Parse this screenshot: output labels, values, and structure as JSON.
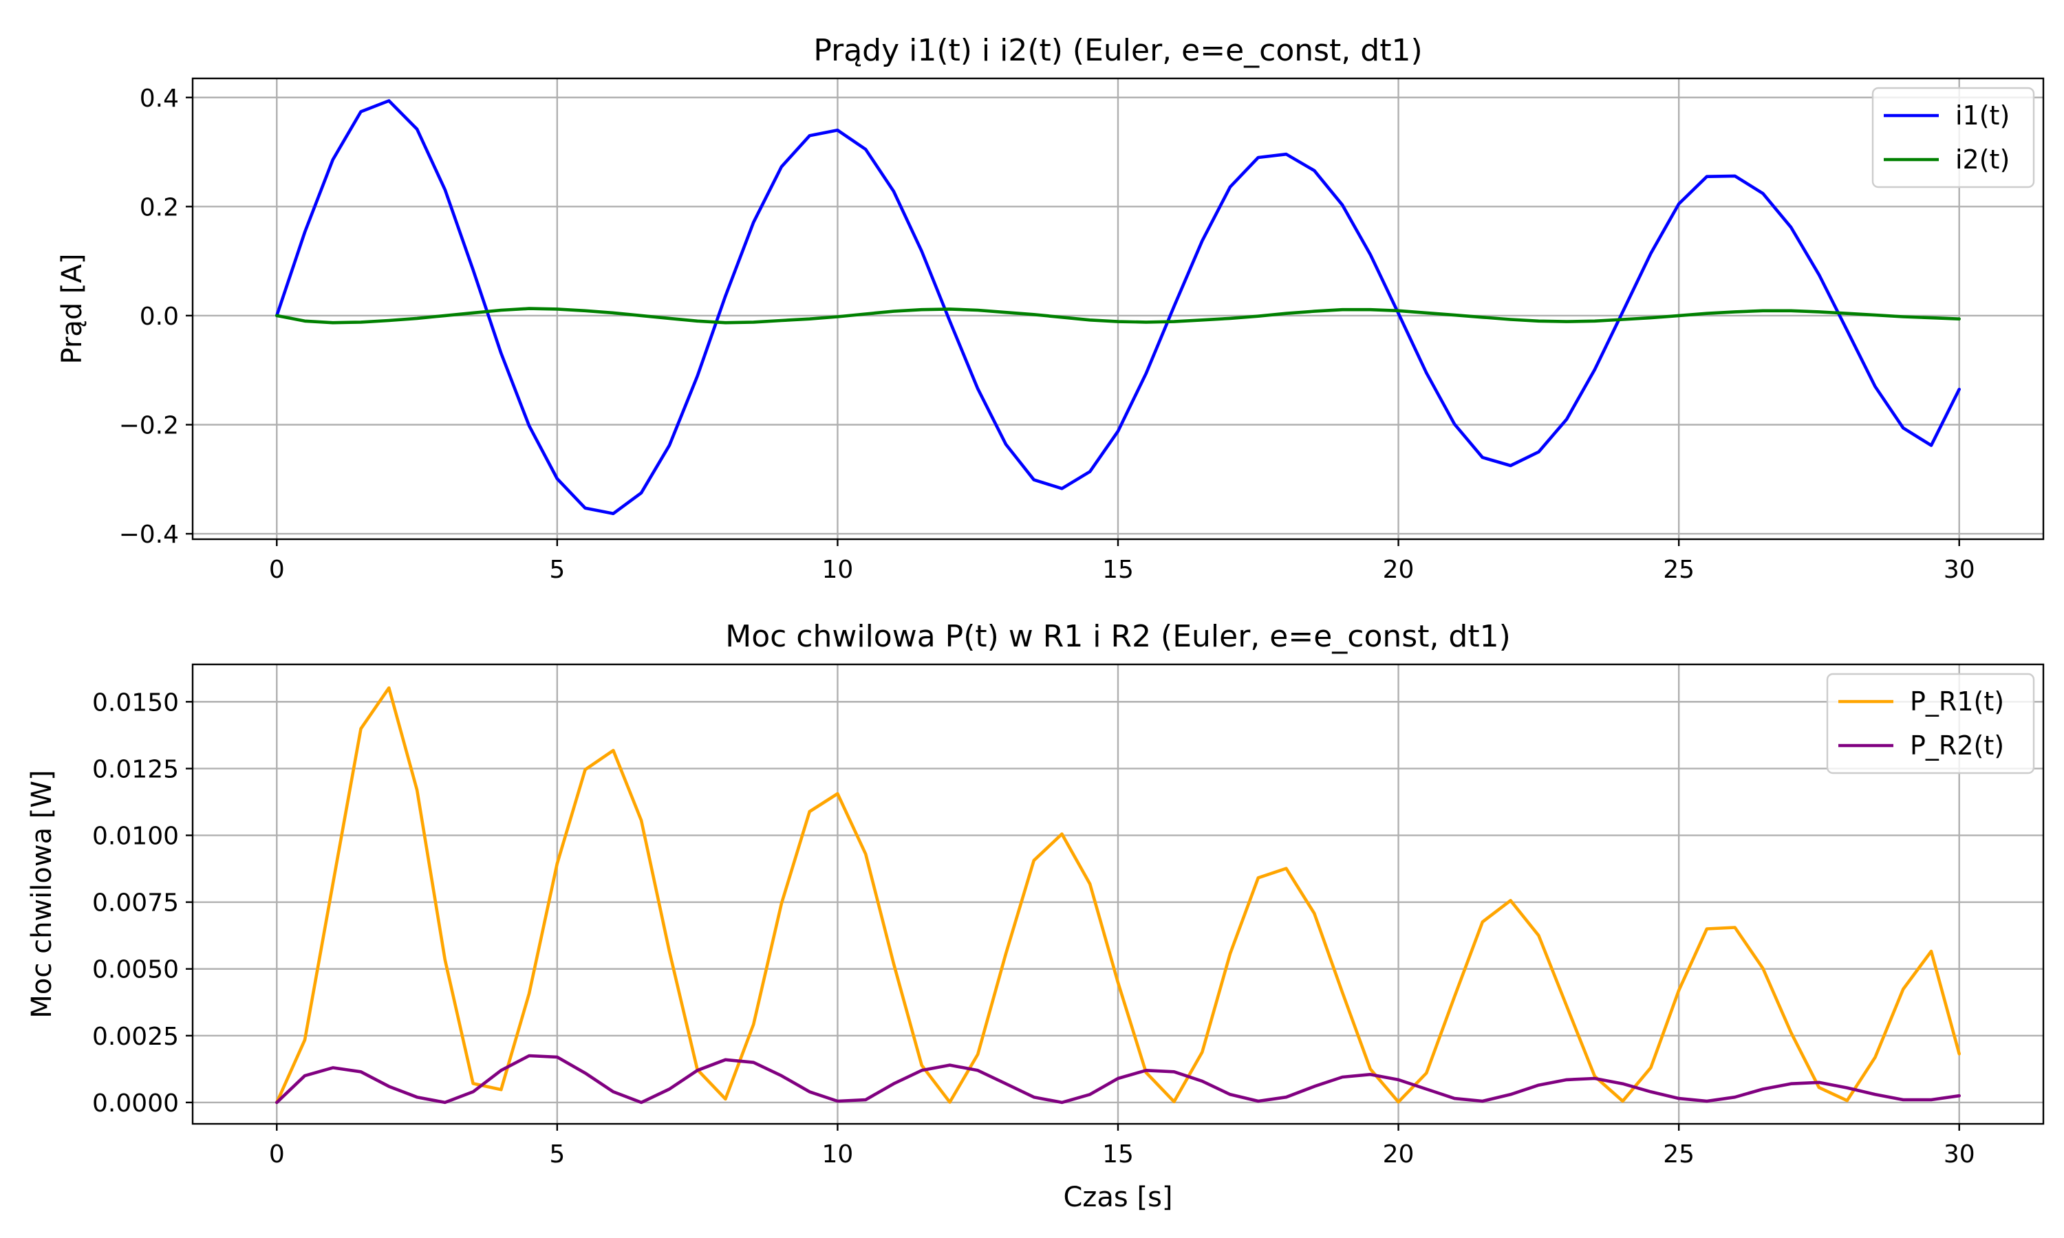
{
  "chart_data": [
    {
      "type": "line",
      "title": "Prądy i1(t) i i2(t) (Euler, e=e_const, dt1)",
      "xlabel": "",
      "ylabel": "Prąd [A]",
      "xlim": [
        -1.5,
        31.5
      ],
      "ylim": [
        -0.41,
        0.435
      ],
      "xticks": [
        0,
        5,
        10,
        15,
        20,
        25,
        30
      ],
      "xtick_labels": [
        "0",
        "5",
        "10",
        "15",
        "20",
        "25",
        "30"
      ],
      "yticks": [
        -0.4,
        -0.2,
        0.0,
        0.2,
        0.4
      ],
      "ytick_labels": [
        "−0.4",
        "−0.2",
        "0.0",
        "0.2",
        "0.4"
      ],
      "grid": true,
      "legend": "top-right",
      "x": [
        0,
        0.5,
        1,
        1.5,
        2,
        2.5,
        3,
        3.5,
        4,
        4.5,
        5,
        5.5,
        6,
        6.5,
        7,
        7.5,
        8,
        8.5,
        9,
        9.5,
        10,
        10.5,
        11,
        11.5,
        12,
        12.5,
        13,
        13.5,
        14,
        14.5,
        15,
        15.5,
        16,
        16.5,
        17,
        17.5,
        18,
        18.5,
        19,
        19.5,
        20,
        20.5,
        21,
        21.5,
        22,
        22.5,
        23,
        23.5,
        24,
        24.5,
        25,
        25.5,
        26,
        26.5,
        27,
        27.5,
        28,
        28.5,
        29,
        29.5,
        30
      ],
      "series": [
        {
          "name": "i1(t)",
          "color": "#0000ff",
          "values": [
            0,
            0.153,
            0.286,
            0.374,
            0.394,
            0.342,
            0.231,
            0.084,
            -0.069,
            -0.202,
            -0.299,
            -0.353,
            -0.363,
            -0.325,
            -0.238,
            -0.111,
            0.036,
            0.171,
            0.273,
            0.33,
            0.34,
            0.305,
            0.228,
            0.118,
            -0.01,
            -0.134,
            -0.236,
            -0.301,
            -0.317,
            -0.286,
            -0.212,
            -0.106,
            0.017,
            0.137,
            0.236,
            0.29,
            0.296,
            0.266,
            0.203,
            0.112,
            0.004,
            -0.105,
            -0.199,
            -0.26,
            -0.275,
            -0.25,
            -0.19,
            -0.099,
            0.007,
            0.114,
            0.205,
            0.255,
            0.256,
            0.224,
            0.162,
            0.075,
            -0.027,
            -0.13,
            -0.206,
            -0.238,
            -0.135
          ]
        },
        {
          "name": "i2(t)",
          "color": "#008000",
          "values": [
            0,
            -0.01,
            -0.013,
            -0.012,
            -0.009,
            -0.005,
            0,
            0.005,
            0.01,
            0.013,
            0.012,
            0.009,
            0.005,
            0,
            -0.005,
            -0.01,
            -0.013,
            -0.012,
            -0.009,
            -0.006,
            -0.002,
            0.003,
            0.008,
            0.011,
            0.012,
            0.01,
            0.006,
            0.002,
            -0.003,
            -0.008,
            -0.011,
            -0.012,
            -0.011,
            -0.008,
            -0.005,
            -0.001,
            0.004,
            0.008,
            0.011,
            0.011,
            0.009,
            0.005,
            0.001,
            -0.003,
            -0.007,
            -0.01,
            -0.011,
            -0.01,
            -0.007,
            -0.004,
            0,
            0.004,
            0.007,
            0.009,
            0.009,
            0.007,
            0.004,
            0.001,
            -0.002,
            -0.004,
            -0.006
          ]
        }
      ]
    },
    {
      "type": "line",
      "title": "Moc chwilowa P(t) w R1 i R2 (Euler, e=e_const, dt1)",
      "xlabel": "Czas [s]",
      "ylabel": "Moc chwilowa [W]",
      "xlim": [
        -1.5,
        31.5
      ],
      "ylim": [
        -0.0008,
        0.0164
      ],
      "xticks": [
        0,
        5,
        10,
        15,
        20,
        25,
        30
      ],
      "xtick_labels": [
        "0",
        "5",
        "10",
        "15",
        "20",
        "25",
        "30"
      ],
      "yticks": [
        0,
        0.0025,
        0.005,
        0.0075,
        0.01,
        0.0125,
        0.015
      ],
      "ytick_labels": [
        "0.0000",
        "0.0025",
        "0.0050",
        "0.0075",
        "0.0100",
        "0.0125",
        "0.0150"
      ],
      "grid": true,
      "legend": "top-right",
      "x": [
        0,
        0.5,
        1,
        1.5,
        2,
        2.5,
        3,
        3.5,
        4,
        4.5,
        5,
        5.5,
        6,
        6.5,
        7,
        7.5,
        8,
        8.5,
        9,
        9.5,
        10,
        10.5,
        11,
        11.5,
        12,
        12.5,
        13,
        13.5,
        14,
        14.5,
        15,
        15.5,
        16,
        16.5,
        17,
        17.5,
        18,
        18.5,
        19,
        19.5,
        20,
        20.5,
        21,
        21.5,
        22,
        22.5,
        23,
        23.5,
        24,
        24.5,
        25,
        25.5,
        26,
        26.5,
        27,
        27.5,
        28,
        28.5,
        29,
        29.5,
        30
      ],
      "series": [
        {
          "name": "P_R1(t)",
          "color": "#ffa500",
          "values": [
            0,
            0.00234,
            0.00818,
            0.01399,
            0.01552,
            0.0117,
            0.00534,
            0.00071,
            0.00048,
            0.00408,
            0.00894,
            0.01246,
            0.01318,
            0.01056,
            0.00566,
            0.00123,
            0.00013,
            0.00292,
            0.00745,
            0.01089,
            0.01156,
            0.0093,
            0.0052,
            0.00139,
            1e-05,
            0.0018,
            0.00557,
            0.00906,
            0.01005,
            0.00818,
            0.00449,
            0.00112,
            3e-05,
            0.00188,
            0.00557,
            0.00841,
            0.00876,
            0.00708,
            0.00412,
            0.00125,
            2e-05,
            0.0011,
            0.00396,
            0.00676,
            0.00756,
            0.00625,
            0.00361,
            0.00098,
            5e-05,
            0.0013,
            0.0042,
            0.0065,
            0.00655,
            0.00502,
            0.00262,
            0.00056,
            7e-05,
            0.00169,
            0.00424,
            0.00566,
            0.00182
          ]
        },
        {
          "name": "P_R2(t)",
          "color": "#800080",
          "values": [
            0,
            0.001,
            0.0013,
            0.00115,
            0.0006,
            0.0002,
            0,
            0.0004,
            0.0012,
            0.00175,
            0.0017,
            0.0011,
            0.0004,
            0,
            0.0005,
            0.0012,
            0.0016,
            0.0015,
            0.001,
            0.0004,
            5e-05,
            0.0001,
            0.0007,
            0.0012,
            0.0014,
            0.0012,
            0.0007,
            0.0002,
            0,
            0.0003,
            0.0009,
            0.0012,
            0.00115,
            0.0008,
            0.0003,
            5e-05,
            0.0002,
            0.0006,
            0.00095,
            0.00105,
            0.00085,
            0.0005,
            0.00015,
            5e-05,
            0.0003,
            0.00065,
            0.00085,
            0.0009,
            0.0007,
            0.0004,
            0.00015,
            5e-05,
            0.0002,
            0.0005,
            0.0007,
            0.00075,
            0.00055,
            0.0003,
            0.0001,
            0.0001,
            0.00025
          ]
        }
      ]
    }
  ]
}
